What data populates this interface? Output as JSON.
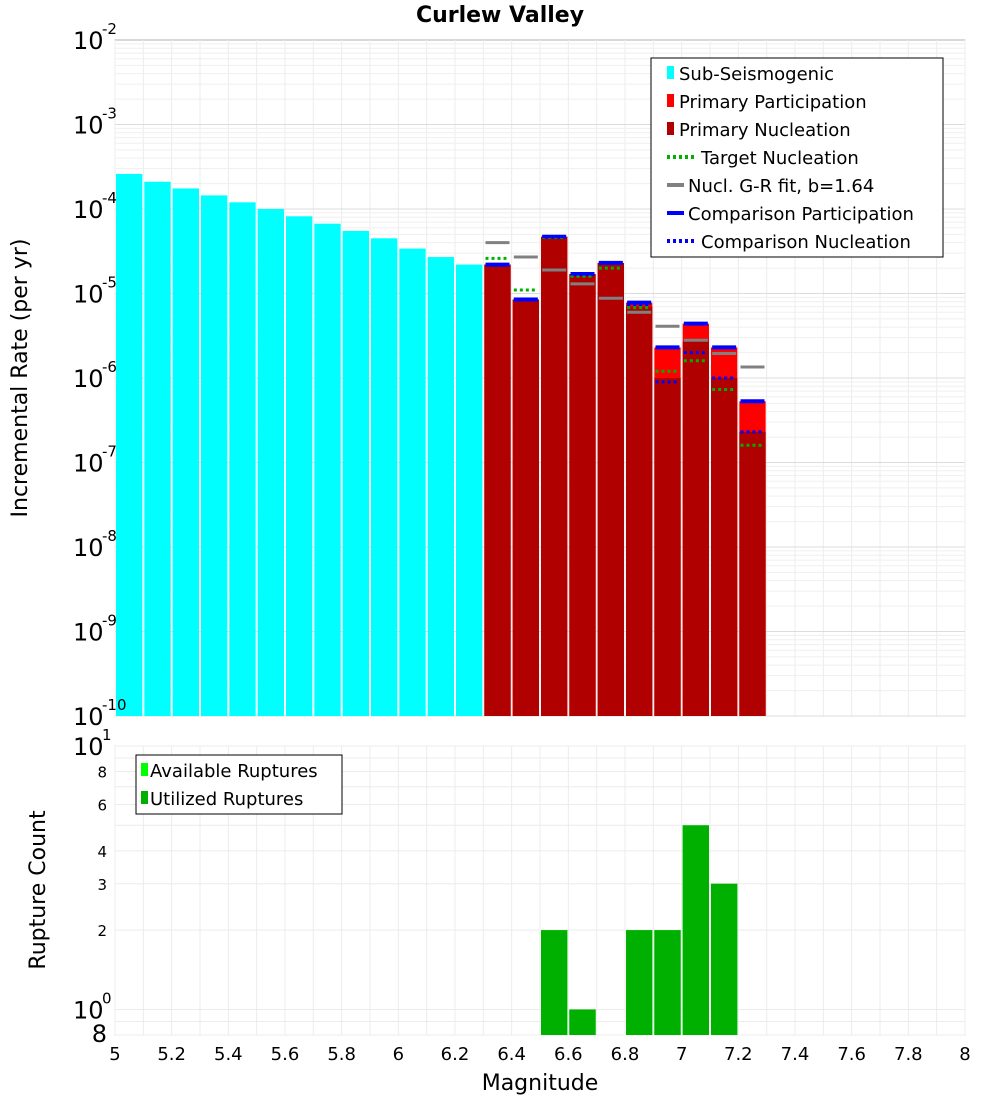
{
  "chart_data": [
    {
      "type": "bar",
      "title": "Curlew Valley",
      "xlabel": "",
      "ylabel": "Incremental Rate (per yr)",
      "yscale": "log",
      "ylim": [
        1e-10,
        0.01
      ],
      "xlim": [
        5,
        8
      ],
      "bin_width": 0.1,
      "y_tick_labels": [
        {
          "base": "10",
          "exp": "-2",
          "value": 0.01
        },
        {
          "base": "10",
          "exp": "-3",
          "value": 0.001
        },
        {
          "base": "10",
          "exp": "-4",
          "value": 0.0001
        },
        {
          "base": "10",
          "exp": "-5",
          "value": 1e-05
        },
        {
          "base": "10",
          "exp": "-6",
          "value": 1e-06
        },
        {
          "base": "10",
          "exp": "-7",
          "value": 1e-07
        },
        {
          "base": "10",
          "exp": "-8",
          "value": 1e-08
        },
        {
          "base": "10",
          "exp": "-9",
          "value": 1e-09
        },
        {
          "base": "10",
          "exp": "-10",
          "value": 1e-10
        }
      ],
      "series": [
        {
          "name": "Sub-Seismogenic",
          "kind": "bar",
          "color": "#00ffff",
          "x": [
            5.05,
            5.15,
            5.25,
            5.35,
            5.45,
            5.55,
            5.65,
            5.75,
            5.85,
            5.95,
            6.05,
            6.15,
            6.25
          ],
          "values": [
            0.00026,
            0.00021,
            0.000175,
            0.000145,
            0.00012,
            0.0001,
            8.2e-05,
            6.7e-05,
            5.5e-05,
            4.5e-05,
            3.4e-05,
            2.7e-05,
            2.2e-05
          ]
        },
        {
          "name": "Primary Participation",
          "kind": "bar",
          "color": "#ff0000",
          "x": [
            6.35,
            6.45,
            6.55,
            6.65,
            6.75,
            6.85,
            6.95,
            7.05,
            7.15,
            7.25
          ],
          "values": [
            2.2e-05,
            8.5e-06,
            4.7e-05,
            1.7e-05,
            2.3e-05,
            7.8e-06,
            2.3e-06,
            4.4e-06,
            2.3e-06,
            5.3e-07
          ]
        },
        {
          "name": "Primary Nucleation",
          "kind": "bar",
          "color": "#b00000",
          "x": [
            6.35,
            6.45,
            6.55,
            6.65,
            6.75,
            6.85,
            6.95,
            7.05,
            7.15,
            7.25
          ],
          "values": [
            2.2e-05,
            8.5e-06,
            4.7e-05,
            1.7e-05,
            2.3e-05,
            7e-06,
            1e-06,
            2.7e-06,
            1e-06,
            2.3e-07
          ]
        },
        {
          "name": "Target Nucleation",
          "kind": "dotted",
          "color": "#00b000",
          "x": [
            6.35,
            6.45,
            6.55,
            6.65,
            6.75,
            6.85,
            6.95,
            7.05,
            7.15,
            7.25
          ],
          "values": [
            2.6e-05,
            1.1e-05,
            4.6e-05,
            1.6e-05,
            2e-05,
            6.8e-06,
            1.2e-06,
            1.6e-06,
            7.3e-07,
            1.6e-07
          ]
        },
        {
          "name": "Nucl. G-R fit, b=1.64",
          "kind": "dash",
          "color": "#808080",
          "x": [
            6.35,
            6.45,
            6.55,
            6.65,
            6.75,
            6.85,
            6.95,
            7.05,
            7.15,
            7.25
          ],
          "values": [
            4e-05,
            2.7e-05,
            1.9e-05,
            1.3e-05,
            8.8e-06,
            6e-06,
            4.1e-06,
            2.8e-06,
            1.95e-06,
            1.35e-06
          ]
        },
        {
          "name": "Comparison Participation",
          "kind": "solid",
          "color": "#0000ff",
          "x": [
            6.35,
            6.45,
            6.55,
            6.65,
            6.75,
            6.85,
            6.95,
            7.05,
            7.15,
            7.25
          ],
          "values": [
            2.2e-05,
            8.5e-06,
            4.7e-05,
            1.7e-05,
            2.3e-05,
            7.8e-06,
            2.3e-06,
            4.4e-06,
            2.3e-06,
            5.3e-07
          ]
        },
        {
          "name": "Comparison Nucleation",
          "kind": "dotted",
          "color": "#0000ff",
          "x": [
            6.35,
            6.45,
            6.55,
            6.65,
            6.75,
            6.85,
            6.95,
            7.05,
            7.15,
            7.25
          ],
          "values": [
            2.2e-05,
            8.5e-06,
            4.7e-05,
            1.7e-05,
            2.3e-05,
            7.4e-06,
            9e-07,
            2e-06,
            1e-06,
            2.3e-07
          ]
        }
      ],
      "legend_position": "top-right"
    },
    {
      "type": "bar",
      "title": "",
      "xlabel": "Magnitude",
      "ylabel": "Rupture Count",
      "yscale": "log",
      "ylim": [
        0.8,
        10
      ],
      "xlim": [
        5,
        8
      ],
      "x_ticks": [
        "5",
        "5.2",
        "5.4",
        "5.6",
        "5.8",
        "6",
        "6.2",
        "6.4",
        "6.6",
        "6.8",
        "7",
        "7.2",
        "7.4",
        "7.6",
        "7.8",
        "8"
      ],
      "y_major_labels": [
        {
          "base": "10",
          "exp": "1",
          "value": 10
        },
        {
          "base": "10",
          "exp": "0",
          "value": 1
        }
      ],
      "y_minor_labels": [
        {
          "label": "8",
          "value": 8
        },
        {
          "label": "6",
          "value": 6
        },
        {
          "label": "4",
          "value": 4
        },
        {
          "label": "3",
          "value": 3
        },
        {
          "label": "2",
          "value": 2
        },
        {
          "label": "8",
          "value": 0.8
        }
      ],
      "series": [
        {
          "name": "Available Ruptures",
          "kind": "bar",
          "color": "#00ff00",
          "x": [
            6.55,
            6.65,
            6.85,
            6.95,
            7.05,
            7.15
          ],
          "values": [
            2,
            1,
            2,
            2,
            5,
            3
          ]
        },
        {
          "name": "Utilized Ruptures",
          "kind": "bar",
          "color": "#00b000",
          "x": [
            6.55,
            6.65,
            6.85,
            6.95,
            7.05,
            7.15
          ],
          "values": [
            2,
            1,
            2,
            2,
            5,
            3
          ]
        }
      ],
      "legend_position": "top-left"
    }
  ]
}
